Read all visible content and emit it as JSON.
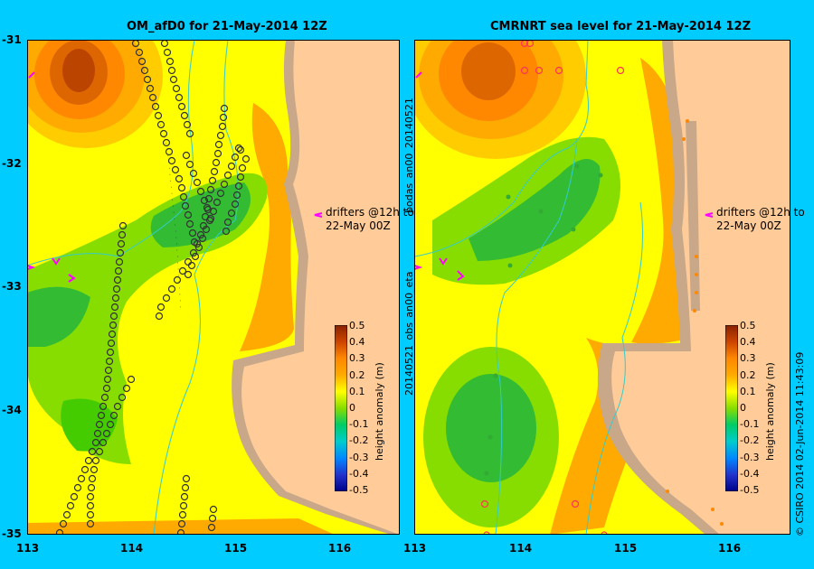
{
  "left_panel": {
    "title": "OM_afD0 for 21-May-2014 12Z",
    "annotation_line1": "drifters @12h to",
    "annotation_line2": "22-May 00Z"
  },
  "right_panel": {
    "title": "CMRNRT sea level  for 21-May-2014 12Z",
    "annotation_line1": "drifters @12h to",
    "annotation_line2": "22-May 00Z"
  },
  "y_ticks": [
    "-31",
    "-32",
    "-33",
    "-34",
    "-35"
  ],
  "x_ticks": [
    "113",
    "114",
    "115",
    "116"
  ],
  "colorbar": {
    "label": "height anomaly (m)",
    "ticks": [
      "0.5",
      "0.4",
      "0.3",
      "0.2",
      "0.1",
      "0",
      "-0.1",
      "-0.2",
      "-0.3",
      "-0.4",
      "-0.5"
    ]
  },
  "side_text_left": "20140521_obs_an00_eta",
  "side_text_left_top": "bodas_an00_20140521",
  "side_text_right": "© CSIRO 2014   02-Jun-2014 11:43:09",
  "colors": {
    "background": "#00ccff",
    "land": "#ffcc99",
    "coast": "#c8a888",
    "drifter_arrow": "#ff00ff"
  }
}
